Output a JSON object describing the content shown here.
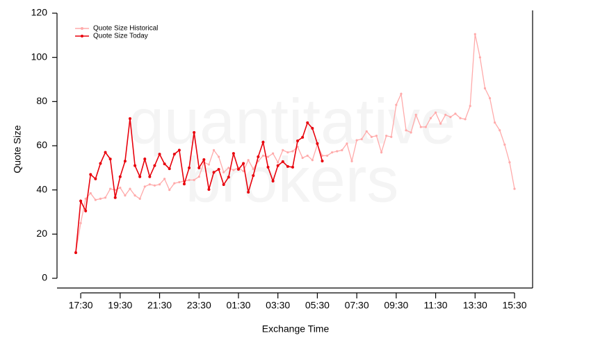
{
  "chart_data": {
    "type": "line",
    "xlabel": "Exchange Time",
    "ylabel": "Quote Size",
    "watermark": [
      "quantitative",
      "brokers"
    ],
    "categories": [
      null,
      "17:30",
      null,
      null,
      null,
      null,
      null,
      null,
      null,
      "19:30",
      null,
      null,
      null,
      null,
      null,
      null,
      null,
      "21:30",
      null,
      null,
      null,
      null,
      null,
      null,
      null,
      "23:30",
      null,
      null,
      null,
      null,
      null,
      null,
      null,
      "01:30",
      null,
      null,
      null,
      null,
      null,
      null,
      null,
      "03:30",
      null,
      null,
      null,
      null,
      null,
      null,
      null,
      "05:30",
      null,
      null,
      null,
      null,
      null,
      null,
      null,
      "07:30",
      null,
      null,
      null,
      null,
      null,
      null,
      null,
      "09:30",
      null,
      null,
      null,
      null,
      null,
      null,
      null,
      "11:30",
      null,
      null,
      null,
      null,
      null,
      null,
      null,
      "13:30",
      null,
      null,
      null,
      null,
      null,
      null,
      null,
      "15:30"
    ],
    "series": [
      {
        "name": "Quote Size Historical",
        "color": "#ffaaaa",
        "values": [
          12,
          25,
          36,
          38.5,
          35.5,
          36,
          36.5,
          40.5,
          40,
          41,
          37.5,
          40.5,
          37.5,
          36,
          41.5,
          42.5,
          42,
          42.5,
          45,
          40,
          43,
          43.5,
          44,
          44.5,
          44.5,
          46,
          52.5,
          51.5,
          58,
          55,
          48,
          50,
          49,
          50,
          48.5,
          53.5,
          49.5,
          53,
          55.5,
          55,
          56.5,
          52.5,
          58,
          57,
          57.5,
          59.5,
          54.5,
          55.5,
          53.5,
          60.5,
          55.5,
          55.5,
          57,
          57.5,
          58,
          61,
          53,
          62.5,
          63,
          66.5,
          64,
          64.5,
          57,
          64.5,
          64,
          78.5,
          83.5,
          67,
          66,
          74,
          68.5,
          68.5,
          72.5,
          75,
          70,
          74,
          73,
          74.5,
          72.5,
          72,
          78,
          110.5,
          100,
          86,
          81.5,
          70.5,
          67,
          60.5,
          52.5,
          40.5
        ]
      },
      {
        "name": "Quote Size Today",
        "color": "#e8000b",
        "values": [
          11.6,
          35,
          30.5,
          47,
          45,
          52,
          57,
          54,
          36.5,
          46,
          53,
          72.3,
          51,
          46,
          54,
          46,
          51,
          56.2,
          51.8,
          49.6,
          56.2,
          58,
          42.7,
          50,
          66,
          50,
          53.7,
          40.2,
          48,
          49.3,
          42.4,
          45.8,
          56.5,
          49.3,
          52,
          39,
          46.5,
          55,
          61.6,
          50.3,
          44,
          51,
          52.8,
          50.6,
          50.3,
          62.2,
          63.8,
          70.4,
          67.9,
          61,
          53.1,
          null,
          null,
          null,
          null,
          null,
          null,
          null,
          null,
          null,
          null,
          null,
          null,
          null,
          null,
          null,
          null,
          null,
          null,
          null,
          null,
          null,
          null,
          null,
          null,
          null,
          null,
          null,
          null,
          null,
          null,
          null,
          null,
          null,
          null,
          null,
          null,
          null,
          null,
          null
        ]
      }
    ],
    "ylim": [
      0,
      120
    ],
    "yticks": [
      0,
      20,
      40,
      60,
      80,
      100,
      120
    ],
    "legend": "top-left"
  }
}
